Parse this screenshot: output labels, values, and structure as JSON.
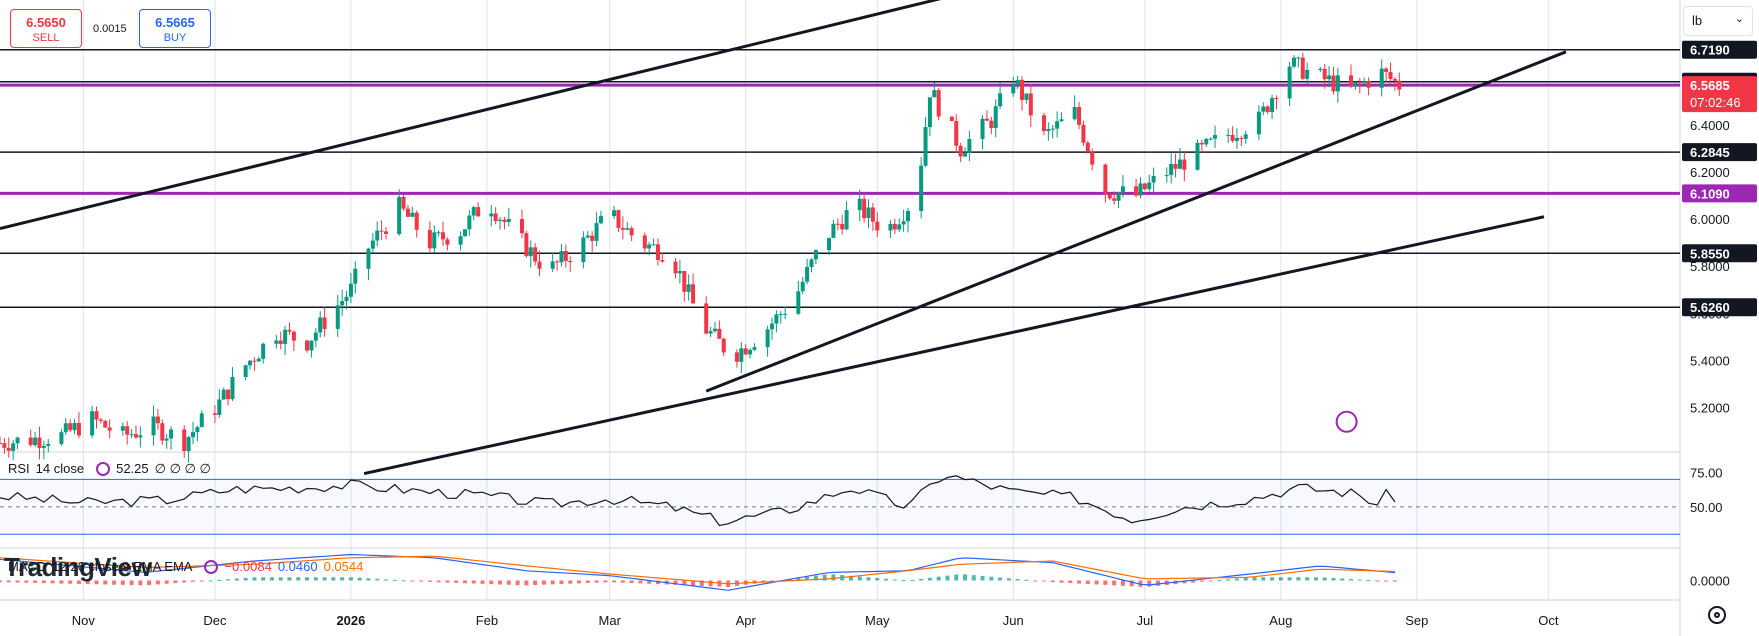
{
  "order_panel": {
    "sell_price": "6.5650",
    "sell_label": "SELL",
    "buy_price": "6.5665",
    "buy_label": "BUY",
    "spread": "0.0015"
  },
  "unit_selector": {
    "value": "lb"
  },
  "watermark": "TradingView",
  "rsi_legend": {
    "name": "RSI",
    "params": "14 close",
    "value": "52.25",
    "placeholders": "∅ ∅ ∅ ∅"
  },
  "macd_legend": {
    "name": "MACD",
    "params": "12 26 close 9 EMA EMA",
    "hist": "−0.0084",
    "macd": "0.0460",
    "signal": "0.0544"
  },
  "colors": {
    "up": "#089981",
    "down": "#f23645",
    "purple": "#9c27b0",
    "macd": "#2962ff",
    "signal": "#ff6d00",
    "rsi_band": "#2962ff"
  },
  "chart_data": {
    "type": "candlestick",
    "x_ticks": [
      {
        "label": "Nov",
        "date": "2025-11-01"
      },
      {
        "label": "Dec",
        "date": "2025-12-01"
      },
      {
        "label": "2026",
        "date": "2026-01-01",
        "bold": true
      },
      {
        "label": "Feb",
        "date": "2026-02-01"
      },
      {
        "label": "Mar",
        "date": "2026-03-01"
      },
      {
        "label": "Apr",
        "date": "2026-04-01"
      },
      {
        "label": "May",
        "date": "2026-05-01"
      },
      {
        "label": "Jun",
        "date": "2026-06-01"
      },
      {
        "label": "Jul",
        "date": "2026-07-01"
      },
      {
        "label": "Aug",
        "date": "2026-08-01"
      },
      {
        "label": "Sep",
        "date": "2026-09-01"
      },
      {
        "label": "Oct",
        "date": "2026-10-01"
      }
    ],
    "x_range": [
      "2025-10-13",
      "2026-10-31"
    ],
    "price_axis": {
      "range": [
        5.02,
        6.93
      ],
      "ticks": [
        "5.2000",
        "5.4000",
        "5.6000",
        "5.8000",
        "6.0000",
        "6.2000",
        "6.4000",
        "6.6000",
        "6.8000"
      ]
    },
    "horizontal_levels": [
      {
        "value": 6.719,
        "label": "6.7190",
        "color": "#131722"
      },
      {
        "value": 6.583,
        "label": "6.5830",
        "color": "#131722"
      },
      {
        "value": 6.2845,
        "label": "6.2845",
        "color": "#131722"
      },
      {
        "value": 6.109,
        "label": "6.1090",
        "color": "#9c27b0"
      },
      {
        "value": 5.855,
        "label": "5.8550",
        "color": "#131722"
      },
      {
        "value": 5.626,
        "label": "5.6260",
        "color": "#131722"
      },
      {
        "value": 6.5685,
        "label": "6.5685",
        "color": "#9c27b0"
      }
    ],
    "current_price": {
      "value": 6.5685,
      "label": "6.5685",
      "countdown": "07:02:46"
    },
    "trendlines": [
      {
        "start": [
          "2025-10-13",
          5.96
        ],
        "end": [
          "2026-08-21",
          7.38
        ]
      },
      {
        "start": [
          "2026-03-23",
          5.27
        ],
        "end": [
          "2026-10-05",
          6.71
        ]
      },
      {
        "start": [
          "2026-01-04",
          4.92
        ],
        "end": [
          "2026-09-30",
          6.01
        ]
      }
    ],
    "ohlc_anchor": [
      [
        "2025-10-13",
        5.05
      ],
      [
        "2025-10-27",
        5.08
      ],
      [
        "2025-11-03",
        5.15
      ],
      [
        "2025-11-10",
        5.08
      ],
      [
        "2025-11-17",
        5.12
      ],
      [
        "2025-11-24",
        5.06
      ],
      [
        "2025-12-02",
        5.22
      ],
      [
        "2025-12-08",
        5.38
      ],
      [
        "2025-12-15",
        5.52
      ],
      [
        "2025-12-22",
        5.48
      ],
      [
        "2026-01-01",
        5.7
      ],
      [
        "2026-01-05",
        5.88
      ],
      [
        "2026-01-12",
        6.05
      ],
      [
        "2026-01-19",
        5.9
      ],
      [
        "2026-01-26",
        5.95
      ],
      [
        "2026-02-01",
        6.08
      ],
      [
        "2026-02-08",
        5.92
      ],
      [
        "2026-02-15",
        5.78
      ],
      [
        "2026-02-22",
        5.88
      ],
      [
        "2026-03-01",
        6.02
      ],
      [
        "2026-03-08",
        5.9
      ],
      [
        "2026-03-15",
        5.85
      ],
      [
        "2026-03-22",
        5.55
      ],
      [
        "2026-03-29",
        5.42
      ],
      [
        "2026-04-05",
        5.52
      ],
      [
        "2026-04-12",
        5.66
      ],
      [
        "2026-04-19",
        5.92
      ],
      [
        "2026-04-26",
        6.06
      ],
      [
        "2026-05-03",
        5.95
      ],
      [
        "2026-05-10",
        6.1
      ],
      [
        "2026-05-13",
        6.55
      ],
      [
        "2026-05-20",
        6.3
      ],
      [
        "2026-05-27",
        6.42
      ],
      [
        "2026-06-01",
        6.6
      ],
      [
        "2026-06-08",
        6.35
      ],
      [
        "2026-06-15",
        6.45
      ],
      [
        "2026-06-22",
        6.12
      ],
      [
        "2026-06-29",
        6.1
      ],
      [
        "2026-07-06",
        6.2
      ],
      [
        "2026-07-13",
        6.28
      ],
      [
        "2026-07-20",
        6.36
      ],
      [
        "2026-07-27",
        6.42
      ],
      [
        "2026-08-03",
        6.66
      ],
      [
        "2026-08-10",
        6.6
      ],
      [
        "2026-08-17",
        6.55
      ],
      [
        "2026-08-24",
        6.62
      ],
      [
        "2026-08-28",
        6.5685
      ]
    ],
    "rsi": {
      "range": [
        20,
        90
      ],
      "ticks": [
        "75.00",
        "50.00"
      ],
      "band": [
        70,
        30
      ],
      "mid": 50,
      "values": [
        [
          "2025-10-13",
          58
        ],
        [
          "2025-11-01",
          53
        ],
        [
          "2025-11-20",
          55
        ],
        [
          "2025-12-05",
          63
        ],
        [
          "2025-12-20",
          64
        ],
        [
          "2026-01-01",
          66
        ],
        [
          "2026-01-15",
          62
        ],
        [
          "2026-02-01",
          58
        ],
        [
          "2026-02-15",
          52
        ],
        [
          "2026-03-01",
          56
        ],
        [
          "2026-03-15",
          50
        ],
        [
          "2026-03-27",
          39
        ],
        [
          "2026-04-10",
          47
        ],
        [
          "2026-04-25",
          64
        ],
        [
          "2026-05-08",
          50
        ],
        [
          "2026-05-16",
          74
        ],
        [
          "2026-06-01",
          61
        ],
        [
          "2026-06-15",
          57
        ],
        [
          "2026-06-28",
          41
        ],
        [
          "2026-07-10",
          50
        ],
        [
          "2026-07-25",
          56
        ],
        [
          "2026-08-05",
          64
        ],
        [
          "2026-08-18",
          60
        ],
        [
          "2026-08-23",
          52
        ],
        [
          "2026-08-26",
          62
        ],
        [
          "2026-08-28",
          52.25
        ]
      ]
    },
    "macd": {
      "range": [
        -0.12,
        0.2
      ],
      "ticks": [
        "0.0000"
      ],
      "values": [
        [
          "2025-10-13",
          0.13,
          0.14
        ],
        [
          "2025-11-15",
          0.05,
          0.08
        ],
        [
          "2025-12-10",
          0.12,
          0.1
        ],
        [
          "2026-01-01",
          0.16,
          0.14
        ],
        [
          "2026-01-20",
          0.14,
          0.15
        ],
        [
          "2026-02-10",
          0.06,
          0.09
        ],
        [
          "2026-03-01",
          0.03,
          0.04
        ],
        [
          "2026-03-28",
          -0.06,
          -0.02
        ],
        [
          "2026-04-20",
          0.05,
          0.01
        ],
        [
          "2026-05-08",
          0.06,
          0.06
        ],
        [
          "2026-05-20",
          0.14,
          0.1
        ],
        [
          "2026-06-10",
          0.11,
          0.12
        ],
        [
          "2026-07-01",
          -0.03,
          0.01
        ],
        [
          "2026-07-25",
          0.04,
          0.02
        ],
        [
          "2026-08-10",
          0.09,
          0.07
        ],
        [
          "2026-08-28",
          0.046,
          0.0544
        ]
      ]
    }
  }
}
